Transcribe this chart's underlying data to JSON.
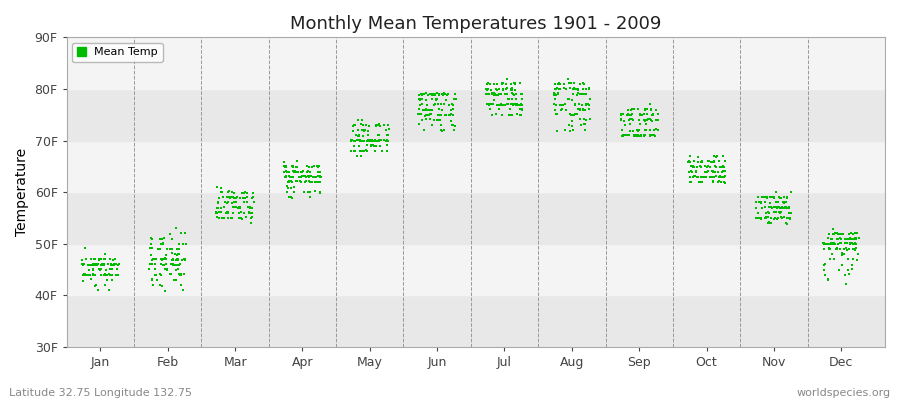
{
  "title": "Monthly Mean Temperatures 1901 - 2009",
  "ylabel": "Temperature",
  "ytick_labels": [
    "30F",
    "40F",
    "50F",
    "60F",
    "70F",
    "80F",
    "90F"
  ],
  "ytick_values": [
    30,
    40,
    50,
    60,
    70,
    80,
    90
  ],
  "ylim": [
    30,
    90
  ],
  "months": [
    "Jan",
    "Feb",
    "Mar",
    "Apr",
    "May",
    "Jun",
    "Jul",
    "Aug",
    "Sep",
    "Oct",
    "Nov",
    "Dec"
  ],
  "month_boundaries": [
    1.5,
    2.5,
    3.5,
    4.5,
    5.5,
    6.5,
    7.5,
    8.5,
    9.5,
    10.5,
    11.5
  ],
  "dot_color": "#00bb00",
  "background_color": "#eeeeee",
  "band_colors": [
    "#e8e8e8",
    "#d8d8d8"
  ],
  "legend_label": "Mean Temp",
  "bottom_left_text": "Latitude 32.75 Longitude 132.75",
  "bottom_right_text": "worldspecies.org",
  "mean_temps_F": {
    "Jan": [
      46,
      47,
      47,
      45,
      45,
      44,
      46,
      44,
      44,
      44,
      43,
      44,
      46,
      46,
      43,
      42,
      41,
      45,
      44,
      46,
      46,
      44,
      42,
      44,
      41,
      41,
      44,
      45,
      45,
      46,
      45,
      44,
      46,
      47,
      49,
      46,
      47,
      47,
      46,
      48,
      46,
      44,
      45,
      46,
      47,
      44,
      46,
      47,
      47,
      46,
      46,
      44,
      44,
      44,
      46,
      45,
      46,
      47,
      46,
      43,
      44,
      46,
      46,
      47,
      46,
      46,
      44,
      45,
      46,
      46,
      44,
      46,
      44,
      44,
      44,
      46,
      46,
      47,
      47,
      46,
      46,
      46,
      46,
      46,
      46,
      46,
      44,
      47,
      46,
      46,
      47,
      46,
      46,
      44,
      46,
      47,
      46,
      46,
      46,
      47,
      46,
      46,
      44,
      45,
      46,
      44,
      44,
      43,
      42
    ],
    "Feb": [
      47,
      46,
      46,
      47,
      47,
      45,
      45,
      45,
      44,
      44,
      43,
      42,
      41,
      44,
      44,
      46,
      46,
      47,
      47,
      46,
      47,
      46,
      47,
      46,
      47,
      46,
      45,
      46,
      50,
      49,
      51,
      52,
      53,
      51,
      52,
      52,
      50,
      51,
      49,
      50,
      51,
      50,
      49,
      50,
      51,
      51,
      49,
      50,
      50,
      49,
      49,
      50,
      47,
      47,
      49,
      48,
      49,
      48,
      49,
      48,
      47,
      47,
      46,
      47,
      48,
      47,
      47,
      46,
      47,
      47,
      46,
      48,
      47,
      46,
      48,
      47,
      48,
      47,
      46,
      47,
      47,
      47,
      47,
      47,
      46,
      45,
      44,
      44,
      46,
      47,
      46,
      46,
      44,
      45,
      46,
      45,
      44,
      44,
      43,
      44,
      44,
      43,
      42,
      42,
      41,
      43,
      44,
      43,
      42
    ],
    "Mar": [
      55,
      56,
      56,
      57,
      56,
      56,
      57,
      56,
      57,
      56,
      56,
      57,
      56,
      57,
      56,
      59,
      59,
      59,
      60,
      60,
      60,
      61,
      61,
      60,
      60,
      60,
      60,
      60,
      59,
      60,
      59,
      60,
      59,
      59,
      59,
      59,
      59,
      59,
      59,
      59,
      59,
      58,
      59,
      60,
      60,
      59,
      59,
      59,
      58,
      58,
      59,
      58,
      57,
      57,
      58,
      58,
      58,
      58,
      58,
      57,
      57,
      58,
      57,
      58,
      57,
      57,
      57,
      57,
      57,
      57,
      57,
      57,
      57,
      57,
      57,
      57,
      56,
      56,
      55,
      55,
      55,
      56,
      56,
      56,
      56,
      55,
      55,
      56,
      56,
      56,
      56,
      55,
      55,
      56,
      55,
      56,
      56,
      56,
      56,
      55,
      55,
      55,
      56,
      55,
      55,
      55,
      55,
      54,
      55
    ],
    "Apr": [
      63,
      64,
      63,
      64,
      63,
      63,
      64,
      63,
      63,
      63,
      63,
      64,
      64,
      63,
      64,
      65,
      65,
      66,
      66,
      65,
      65,
      65,
      65,
      65,
      65,
      65,
      65,
      65,
      65,
      65,
      65,
      65,
      64,
      64,
      64,
      64,
      64,
      65,
      64,
      64,
      64,
      63,
      64,
      65,
      64,
      64,
      64,
      63,
      63,
      63,
      63,
      63,
      64,
      64,
      64,
      63,
      63,
      63,
      63,
      63,
      62,
      63,
      62,
      63,
      62,
      63,
      63,
      62,
      63,
      62,
      63,
      62,
      62,
      62,
      63,
      62,
      62,
      62,
      62,
      62,
      62,
      62,
      62,
      62,
      62,
      63,
      62,
      62,
      63,
      62,
      63,
      62,
      61,
      60,
      60,
      61,
      61,
      61,
      60,
      60,
      59,
      60,
      60,
      59,
      60,
      59,
      60,
      59,
      59
    ],
    "May": [
      70,
      70,
      70,
      70,
      70,
      69,
      70,
      70,
      69,
      70,
      70,
      70,
      70,
      70,
      70,
      71,
      72,
      72,
      73,
      73,
      73,
      73,
      74,
      73,
      73,
      73,
      73,
      73,
      74,
      73,
      73,
      73,
      73,
      73,
      73,
      73,
      73,
      73,
      72,
      72,
      72,
      71,
      72,
      72,
      71,
      72,
      72,
      71,
      71,
      71,
      71,
      71,
      71,
      70,
      71,
      70,
      70,
      70,
      70,
      70,
      69,
      70,
      70,
      69,
      70,
      70,
      70,
      70,
      70,
      70,
      70,
      70,
      70,
      69,
      70,
      69,
      69,
      70,
      69,
      70,
      70,
      70,
      70,
      70,
      70,
      70,
      70,
      70,
      70,
      70,
      70,
      70,
      69,
      68,
      68,
      69,
      69,
      68,
      68,
      68,
      68,
      68,
      68,
      68,
      68,
      67,
      67,
      67,
      68
    ],
    "Jun": [
      75,
      75,
      75,
      76,
      75,
      74,
      74,
      75,
      74,
      75,
      75,
      75,
      75,
      75,
      75,
      76,
      76,
      77,
      78,
      78,
      78,
      78,
      79,
      78,
      78,
      78,
      78,
      78,
      79,
      79,
      79,
      79,
      79,
      79,
      79,
      79,
      79,
      79,
      79,
      79,
      79,
      78,
      79,
      79,
      79,
      79,
      79,
      79,
      79,
      79,
      79,
      79,
      79,
      79,
      79,
      79,
      79,
      79,
      79,
      78,
      78,
      79,
      78,
      78,
      77,
      77,
      77,
      77,
      77,
      77,
      77,
      77,
      77,
      76,
      77,
      76,
      76,
      76,
      76,
      76,
      76,
      76,
      76,
      75,
      75,
      75,
      75,
      75,
      75,
      75,
      75,
      75,
      74,
      74,
      74,
      74,
      74,
      74,
      73,
      73,
      73,
      73,
      73,
      73,
      72,
      72,
      72,
      72,
      72
    ],
    "Jul": [
      79,
      79,
      80,
      80,
      80,
      79,
      79,
      79,
      79,
      79,
      79,
      79,
      79,
      79,
      79,
      80,
      80,
      80,
      81,
      81,
      81,
      81,
      82,
      81,
      81,
      81,
      81,
      81,
      81,
      81,
      81,
      81,
      80,
      80,
      81,
      80,
      80,
      80,
      80,
      80,
      80,
      79,
      80,
      80,
      79,
      79,
      79,
      79,
      79,
      79,
      79,
      79,
      78,
      78,
      79,
      78,
      79,
      78,
      78,
      78,
      77,
      77,
      77,
      77,
      77,
      77,
      77,
      77,
      77,
      77,
      77,
      77,
      77,
      77,
      77,
      77,
      77,
      77,
      77,
      77,
      77,
      77,
      77,
      77,
      77,
      77,
      77,
      77,
      77,
      77,
      77,
      77,
      76,
      76,
      76,
      76,
      76,
      76,
      76,
      76,
      75,
      75,
      75,
      75,
      75,
      75,
      75,
      75,
      75
    ],
    "Aug": [
      80,
      80,
      80,
      80,
      80,
      79,
      79,
      80,
      79,
      80,
      80,
      80,
      80,
      80,
      79,
      80,
      80,
      80,
      81,
      81,
      81,
      81,
      82,
      81,
      81,
      81,
      81,
      81,
      81,
      81,
      81,
      81,
      80,
      80,
      80,
      80,
      80,
      80,
      80,
      80,
      80,
      79,
      80,
      80,
      79,
      79,
      79,
      79,
      79,
      79,
      79,
      79,
      78,
      78,
      79,
      78,
      79,
      78,
      78,
      77,
      77,
      77,
      77,
      77,
      77,
      77,
      76,
      77,
      77,
      77,
      77,
      77,
      77,
      76,
      77,
      76,
      76,
      77,
      76,
      76,
      76,
      76,
      76,
      76,
      75,
      75,
      75,
      75,
      75,
      76,
      75,
      75,
      74,
      74,
      74,
      75,
      74,
      74,
      73,
      73,
      73,
      73,
      73,
      73,
      72,
      72,
      72,
      72,
      72
    ],
    "Sep": [
      74,
      74,
      75,
      75,
      75,
      74,
      74,
      74,
      74,
      74,
      74,
      74,
      74,
      74,
      73,
      74,
      74,
      75,
      75,
      76,
      76,
      76,
      77,
      76,
      76,
      76,
      76,
      76,
      76,
      76,
      76,
      76,
      75,
      75,
      75,
      75,
      75,
      75,
      75,
      75,
      75,
      74,
      75,
      75,
      75,
      75,
      75,
      75,
      74,
      75,
      74,
      74,
      74,
      74,
      74,
      74,
      74,
      73,
      73,
      73,
      72,
      72,
      72,
      72,
      72,
      72,
      72,
      72,
      72,
      72,
      71,
      72,
      72,
      71,
      72,
      71,
      71,
      72,
      71,
      71,
      71,
      71,
      71,
      71,
      71,
      71,
      71,
      71,
      71,
      71,
      71,
      71,
      71,
      71,
      71,
      71,
      71,
      71,
      71,
      71,
      71,
      71,
      71,
      71,
      71,
      71,
      71,
      71,
      71
    ],
    "Oct": [
      65,
      65,
      65,
      65,
      65,
      64,
      64,
      64,
      64,
      64,
      64,
      64,
      64,
      64,
      64,
      65,
      65,
      65,
      66,
      66,
      66,
      67,
      67,
      66,
      66,
      66,
      66,
      67,
      67,
      67,
      67,
      67,
      66,
      66,
      66,
      66,
      66,
      66,
      66,
      66,
      66,
      65,
      66,
      66,
      65,
      65,
      65,
      65,
      65,
      65,
      65,
      65,
      65,
      64,
      65,
      64,
      65,
      64,
      64,
      64,
      63,
      63,
      64,
      64,
      64,
      63,
      63,
      63,
      63,
      63,
      63,
      63,
      63,
      63,
      63,
      63,
      63,
      63,
      63,
      63,
      63,
      63,
      63,
      63,
      63,
      63,
      63,
      63,
      63,
      63,
      63,
      63,
      63,
      62,
      62,
      63,
      62,
      62,
      62,
      62,
      62,
      62,
      62,
      62,
      62,
      62,
      62,
      62,
      62
    ],
    "Nov": [
      57,
      57,
      57,
      57,
      57,
      56,
      56,
      57,
      56,
      57,
      57,
      57,
      57,
      57,
      57,
      58,
      58,
      58,
      59,
      59,
      59,
      60,
      60,
      59,
      59,
      59,
      59,
      59,
      59,
      59,
      59,
      59,
      59,
      59,
      59,
      59,
      59,
      59,
      59,
      59,
      59,
      58,
      59,
      59,
      58,
      58,
      58,
      58,
      58,
      58,
      58,
      58,
      58,
      57,
      58,
      57,
      57,
      57,
      57,
      57,
      56,
      57,
      57,
      57,
      57,
      57,
      57,
      56,
      56,
      56,
      56,
      56,
      56,
      55,
      56,
      55,
      55,
      56,
      55,
      55,
      55,
      55,
      55,
      55,
      55,
      55,
      55,
      55,
      55,
      55,
      55,
      55,
      55,
      55,
      55,
      55,
      55,
      55,
      55,
      55,
      54,
      54,
      54,
      54,
      54,
      54,
      54,
      54,
      55
    ],
    "Dec": [
      50,
      50,
      50,
      50,
      50,
      50,
      50,
      49,
      50,
      49,
      50,
      50,
      50,
      50,
      50,
      51,
      51,
      51,
      52,
      52,
      52,
      52,
      53,
      52,
      52,
      52,
      52,
      52,
      52,
      52,
      52,
      52,
      52,
      51,
      52,
      51,
      51,
      51,
      51,
      51,
      51,
      51,
      51,
      51,
      51,
      51,
      51,
      51,
      51,
      51,
      51,
      51,
      50,
      50,
      51,
      50,
      50,
      50,
      50,
      50,
      50,
      50,
      50,
      50,
      50,
      50,
      50,
      49,
      50,
      49,
      49,
      49,
      49,
      49,
      49,
      49,
      49,
      49,
      49,
      49,
      49,
      49,
      49,
      49,
      48,
      48,
      48,
      48,
      48,
      48,
      47,
      47,
      47,
      47,
      47,
      46,
      46,
      46,
      46,
      45,
      45,
      45,
      45,
      44,
      44,
      44,
      43,
      42,
      43
    ]
  }
}
